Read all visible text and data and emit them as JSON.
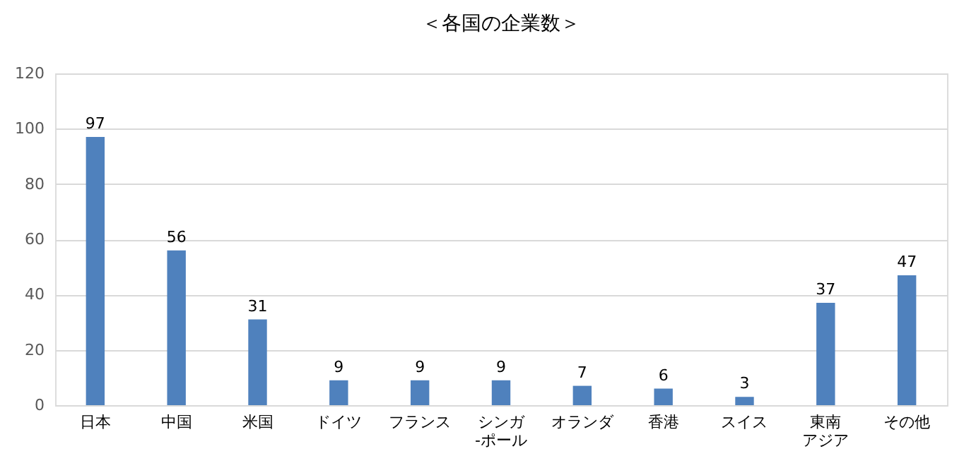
{
  "chart_data": {
    "type": "bar",
    "title": "＜各国の企業数＞",
    "categories": [
      "日本",
      "中国",
      "米国",
      "ドイツ",
      "フランス",
      "シンガ-ポール",
      "オランダ",
      "香港",
      "スイス",
      "東南アジア",
      "その他"
    ],
    "values": [
      97,
      56,
      31,
      9,
      9,
      9,
      7,
      6,
      3,
      37,
      47
    ],
    "color": "#4f81bd",
    "ylim": [
      0,
      120
    ],
    "yticks": [
      0,
      20,
      40,
      60,
      80,
      100,
      120
    ],
    "grid": "y",
    "data_labels": true
  }
}
